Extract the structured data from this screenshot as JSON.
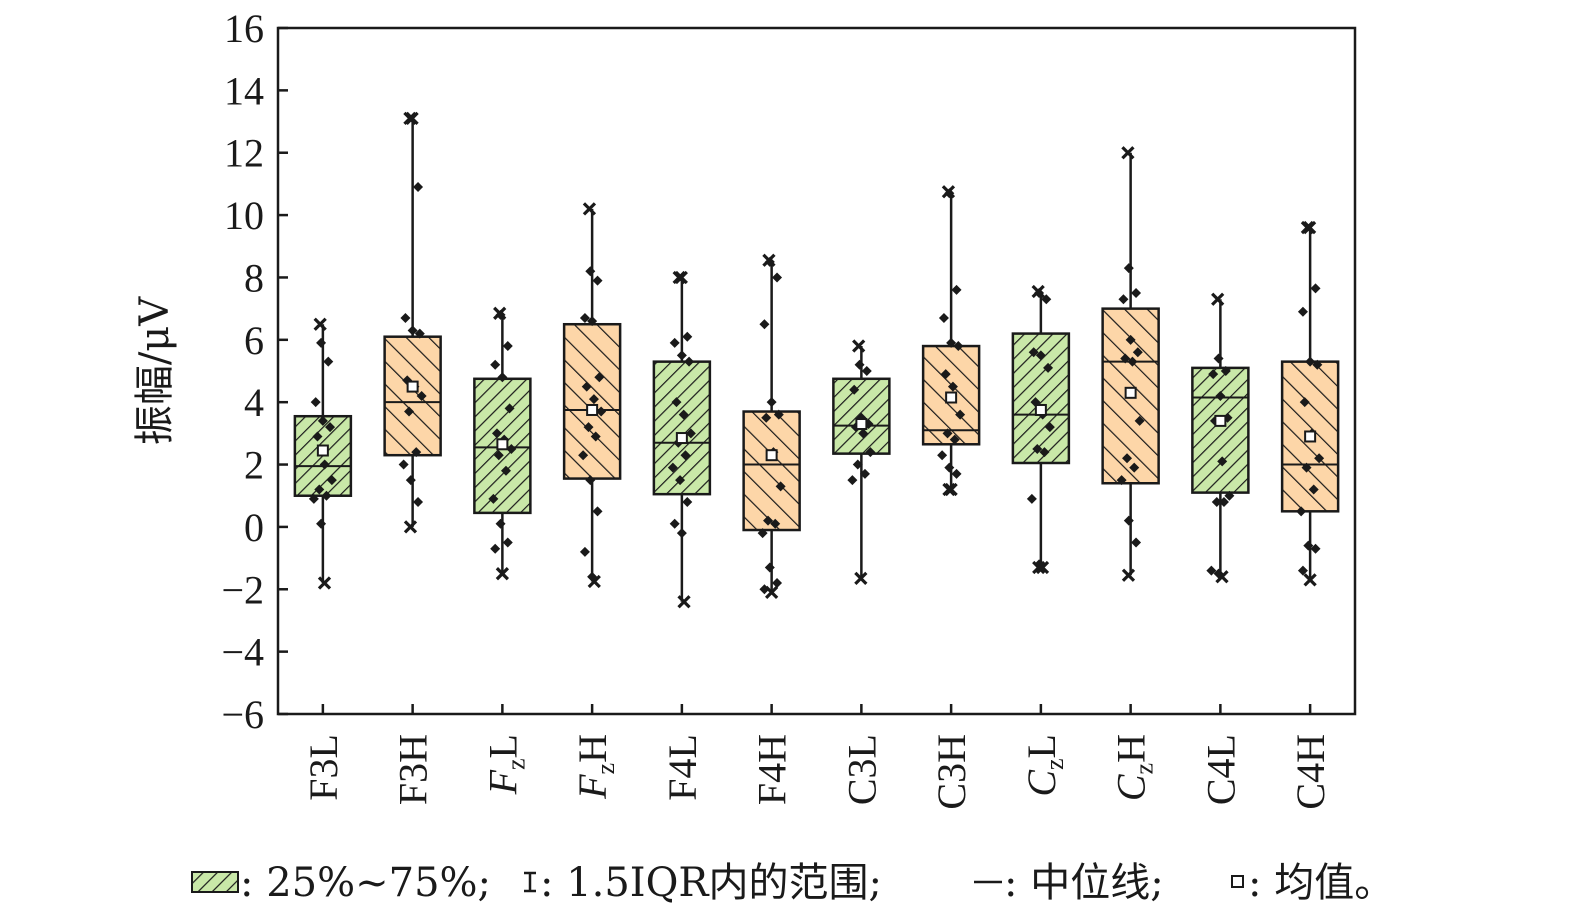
{
  "chart_data": {
    "type": "box",
    "ylabel": "振幅/μV",
    "ylim": [
      -6,
      16
    ],
    "yticks": [
      -6,
      -4,
      -2,
      0,
      2,
      4,
      6,
      8,
      10,
      12,
      14,
      16
    ],
    "ytick_labels": [
      "−6",
      "−4",
      "−2",
      "0",
      "2",
      "4",
      "6",
      "8",
      "10",
      "12",
      "14",
      "16"
    ],
    "grid": false,
    "colors": {
      "L": "#c9e8a8",
      "H": "#fdd6a8",
      "hatch": "#1a1a1a",
      "edge": "#1a1a1a"
    },
    "categories": [
      {
        "main": "F3L",
        "sub": "",
        "italic": false,
        "group": "L"
      },
      {
        "main": "F3H",
        "sub": "",
        "italic": false,
        "group": "H"
      },
      {
        "main": "F",
        "sub": "z",
        "tail": "L",
        "italic": true,
        "group": "L"
      },
      {
        "main": "F",
        "sub": "z",
        "tail": "H",
        "italic": true,
        "group": "H"
      },
      {
        "main": "F4L",
        "sub": "",
        "italic": false,
        "group": "L"
      },
      {
        "main": "F4H",
        "sub": "",
        "italic": false,
        "group": "H"
      },
      {
        "main": "C3L",
        "sub": "",
        "italic": false,
        "group": "L"
      },
      {
        "main": "C3H",
        "sub": "",
        "italic": false,
        "group": "H"
      },
      {
        "main": "C",
        "sub": "z",
        "tail": "L",
        "italic": true,
        "group": "L"
      },
      {
        "main": "C",
        "sub": "z",
        "tail": "H",
        "italic": true,
        "group": "H"
      },
      {
        "main": "C4L",
        "sub": "",
        "italic": false,
        "group": "L"
      },
      {
        "main": "C4H",
        "sub": "",
        "italic": false,
        "group": "H"
      }
    ],
    "boxes": [
      {
        "q1": 1.0,
        "median": 1.95,
        "q3": 3.55,
        "mean": 2.45,
        "whisker_low": -1.8,
        "whisker_high": 6.5,
        "points": [
          6.5,
          5.9,
          5.3,
          4.0,
          3.4,
          3.2,
          2.9,
          2.0,
          1.5,
          1.2,
          1.0,
          0.9,
          0.1,
          -1.8
        ]
      },
      {
        "q1": 2.3,
        "median": 4.0,
        "q3": 6.1,
        "mean": 4.5,
        "whisker_low": 0.0,
        "whisker_high": 13.1,
        "points": [
          13.1,
          13.1,
          10.9,
          6.7,
          6.3,
          6.2,
          4.7,
          4.5,
          4.2,
          3.7,
          2.4,
          2.0,
          1.5,
          0.8,
          0.0
        ]
      },
      {
        "q1": 0.45,
        "median": 2.55,
        "q3": 4.75,
        "mean": 2.65,
        "whisker_low": -1.5,
        "whisker_high": 6.85,
        "points": [
          6.85,
          6.8,
          5.8,
          5.2,
          4.8,
          3.8,
          3.0,
          2.8,
          2.5,
          2.3,
          1.8,
          0.9,
          0.1,
          -0.5,
          -0.7,
          -1.5
        ]
      },
      {
        "q1": 1.55,
        "median": 3.75,
        "q3": 6.5,
        "mean": 3.75,
        "whisker_low": -1.75,
        "whisker_high": 10.2,
        "points": [
          10.2,
          8.2,
          7.9,
          6.7,
          6.6,
          4.8,
          4.5,
          4.1,
          3.7,
          3.2,
          2.9,
          2.3,
          1.5,
          0.5,
          -0.8,
          -1.6,
          -1.75
        ]
      },
      {
        "q1": 1.05,
        "median": 2.7,
        "q3": 5.3,
        "mean": 2.85,
        "whisker_low": -2.4,
        "whisker_high": 8.0,
        "points": [
          8.0,
          8.0,
          6.1,
          5.9,
          5.5,
          5.3,
          4.0,
          3.6,
          3.0,
          2.7,
          2.3,
          1.9,
          1.5,
          0.8,
          0.1,
          -0.2,
          -2.4
        ]
      },
      {
        "q1": -0.1,
        "median": 2.0,
        "q3": 3.7,
        "mean": 2.3,
        "whisker_low": -2.1,
        "whisker_high": 8.55,
        "points": [
          8.55,
          8.5,
          8.0,
          6.5,
          4.0,
          3.6,
          3.5,
          2.4,
          1.3,
          0.2,
          0.1,
          -0.2,
          -1.3,
          -1.8,
          -2.0,
          -2.1
        ]
      },
      {
        "q1": 2.35,
        "median": 3.25,
        "q3": 4.75,
        "mean": 3.3,
        "whisker_low": -1.65,
        "whisker_high": 5.8,
        "points": [
          5.8,
          5.2,
          5.0,
          4.4,
          3.5,
          3.3,
          3.2,
          3.0,
          2.4,
          2.0,
          1.7,
          1.5,
          -1.65
        ]
      },
      {
        "q1": 2.65,
        "median": 3.1,
        "q3": 5.8,
        "mean": 4.15,
        "whisker_low": 1.2,
        "whisker_high": 10.75,
        "points": [
          10.75,
          10.7,
          7.6,
          6.7,
          5.9,
          5.8,
          4.9,
          4.5,
          3.6,
          3.0,
          2.8,
          2.3,
          1.9,
          1.7,
          1.2,
          1.2
        ]
      },
      {
        "q1": 2.05,
        "median": 3.6,
        "q3": 6.2,
        "mean": 3.75,
        "whisker_low": -1.3,
        "whisker_high": 7.55,
        "points": [
          7.55,
          7.5,
          7.3,
          5.6,
          5.5,
          5.1,
          4.0,
          3.6,
          3.2,
          2.5,
          2.4,
          0.9,
          -1.2,
          -1.3,
          -1.3
        ]
      },
      {
        "q1": 1.4,
        "median": 5.3,
        "q3": 7.0,
        "mean": 4.3,
        "whisker_low": -1.55,
        "whisker_high": 12.0,
        "points": [
          12.0,
          8.3,
          7.5,
          7.3,
          6.0,
          5.6,
          5.4,
          5.3,
          3.4,
          2.2,
          1.9,
          1.5,
          0.2,
          -0.5,
          -1.55
        ]
      },
      {
        "q1": 1.1,
        "median": 4.15,
        "q3": 5.1,
        "mean": 3.4,
        "whisker_low": -1.6,
        "whisker_high": 7.3,
        "points": [
          7.3,
          5.4,
          5.0,
          4.9,
          4.2,
          3.5,
          3.4,
          2.1,
          1.0,
          0.8,
          0.8,
          -1.4,
          -1.5,
          -1.6
        ]
      },
      {
        "q1": 0.5,
        "median": 2.0,
        "q3": 5.3,
        "mean": 2.9,
        "whisker_low": -1.7,
        "whisker_high": 9.6,
        "points": [
          9.6,
          9.6,
          7.65,
          6.9,
          5.3,
          5.2,
          4.0,
          3.0,
          2.2,
          1.9,
          1.2,
          0.5,
          -0.6,
          -0.7,
          -1.4,
          -1.7
        ]
      }
    ],
    "legend": {
      "placement": "bottom",
      "entries": [
        {
          "symbol": "hatched-box",
          "label": ": 25%~75%;"
        },
        {
          "symbol": "whisker",
          "label": ": 1.5IQR内的范围;"
        },
        {
          "symbol": "median-line",
          "label": ": 中位线;"
        },
        {
          "symbol": "mean-square",
          "label": ": 均值。"
        }
      ]
    }
  }
}
